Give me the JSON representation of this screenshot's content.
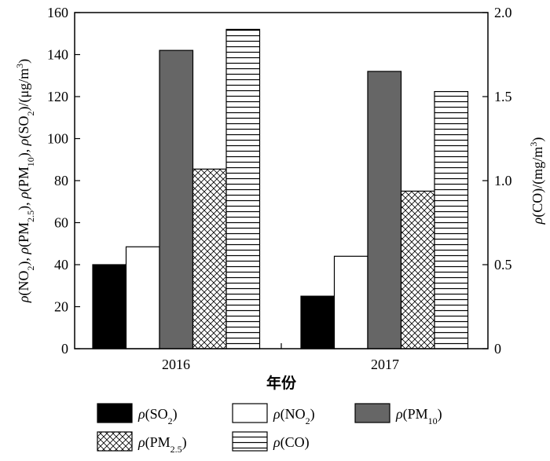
{
  "chart_data": {
    "type": "bar",
    "categories": [
      "2016",
      "2017"
    ],
    "xlabel": "年份",
    "ylabel_left": "ρ(NO2), ρ(PM2.5), ρ(PM10), ρ(SO2)/(μg/m3)",
    "ylabel_right": "ρ(CO)/(mg/m3)",
    "ylim_left": [
      0,
      160
    ],
    "yticks_left": [
      0,
      20,
      40,
      60,
      80,
      100,
      120,
      140,
      160
    ],
    "ylim_right": [
      0,
      2.0
    ],
    "yticks_right": [
      "0",
      "0.5",
      "1.0",
      "1.5",
      "2.0"
    ],
    "grid": false,
    "legend_position": "bottom",
    "series": [
      {
        "name": "ρ(SO2)",
        "axis": "left",
        "fill": "#000000",
        "pattern": "solid",
        "values": [
          40,
          25
        ]
      },
      {
        "name": "ρ(NO2)",
        "axis": "left",
        "fill": "#ffffff",
        "pattern": "solid",
        "values": [
          48.5,
          44
        ]
      },
      {
        "name": "ρ(PM10)",
        "axis": "left",
        "fill": "#666666",
        "pattern": "solid",
        "values": [
          142,
          132
        ]
      },
      {
        "name": "ρ(PM2.5)",
        "axis": "left",
        "fill": "#ffffff",
        "pattern": "crosshatch",
        "values": [
          85.5,
          75
        ]
      },
      {
        "name": "ρ(CO)",
        "axis": "right",
        "fill": "#ffffff",
        "pattern": "horizontal-lines",
        "values": [
          1.9,
          1.53
        ]
      }
    ]
  }
}
